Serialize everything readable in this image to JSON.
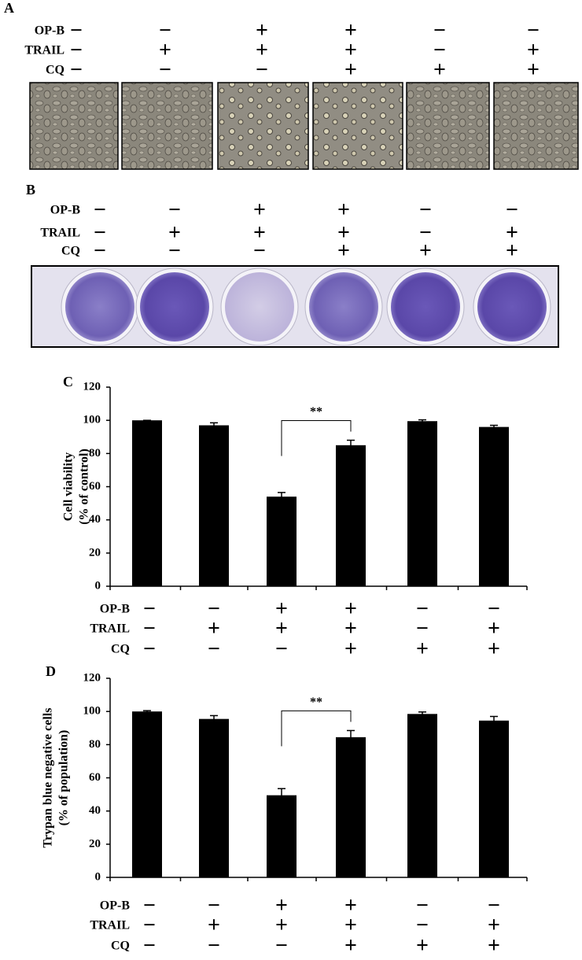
{
  "panel_a": {
    "label": "A",
    "treatments": [
      {
        "name": "OP-B",
        "signs": [
          "−",
          "−",
          "+",
          "+",
          "−",
          "−"
        ]
      },
      {
        "name": "TRAIL",
        "signs": [
          "−",
          "+",
          "+",
          "+",
          "−",
          "+"
        ]
      },
      {
        "name": "CQ",
        "signs": [
          "−",
          "−",
          "−",
          "+",
          "+",
          "+"
        ]
      }
    ]
  },
  "panel_b": {
    "label": "B",
    "treatments": [
      {
        "name": "OP-B",
        "signs": [
          "−",
          "−",
          "+",
          "+",
          "−",
          "−"
        ]
      },
      {
        "name": "TRAIL",
        "signs": [
          "−",
          "+",
          "+",
          "+",
          "−",
          "+"
        ]
      },
      {
        "name": "CQ",
        "signs": [
          "−",
          "−",
          "−",
          "+",
          "+",
          "+"
        ]
      }
    ]
  },
  "chart_data": [
    {
      "type": "bar",
      "panel_label": "C",
      "y_label": [
        "Cell viability",
        "(% of control)"
      ],
      "values": [
        100,
        97,
        54,
        85,
        99.5,
        96
      ],
      "errors": [
        0,
        1.5,
        2.5,
        3,
        0.8,
        1
      ],
      "color": "#000000",
      "ylim": [
        0,
        120
      ],
      "yticks": [
        0,
        20,
        40,
        60,
        80,
        100,
        120
      ],
      "annotation": "**",
      "treatments": [
        {
          "name": "OP-B",
          "signs": [
            "−",
            "−",
            "+",
            "+",
            "−",
            "−"
          ]
        },
        {
          "name": "TRAIL",
          "signs": [
            "−",
            "+",
            "+",
            "+",
            "−",
            "+"
          ]
        },
        {
          "name": "CQ",
          "signs": [
            "−",
            "−",
            "−",
            "+",
            "+",
            "+"
          ]
        }
      ]
    },
    {
      "type": "bar",
      "panel_label": "D",
      "y_label": [
        "Trypan blue negative cells",
        "(% of population)"
      ],
      "values": [
        100,
        95.5,
        49.5,
        84.5,
        98.5,
        94.5
      ],
      "errors": [
        0.5,
        2,
        4,
        4,
        1.2,
        2.5
      ],
      "color": "#000000",
      "ylim": [
        0,
        120
      ],
      "yticks": [
        0,
        20,
        40,
        60,
        80,
        100,
        120
      ],
      "annotation": "**",
      "treatments": [
        {
          "name": "OP-B",
          "signs": [
            "−",
            "−",
            "+",
            "+",
            "−",
            "−"
          ]
        },
        {
          "name": "TRAIL",
          "signs": [
            "−",
            "+",
            "+",
            "+",
            "−",
            "+"
          ]
        },
        {
          "name": "CQ",
          "signs": [
            "−",
            "−",
            "−",
            "+",
            "+",
            "+"
          ]
        }
      ]
    }
  ]
}
